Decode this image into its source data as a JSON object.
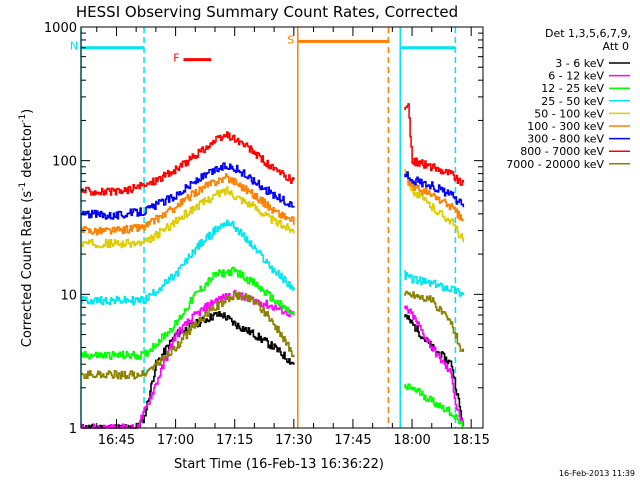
{
  "chart_data": {
    "type": "line",
    "title": "HESSI Observing Summary Count Rates, Corrected",
    "xlabel": "Start Time (16-Feb-13 16:36:22)",
    "ylabel": "Corrected Count Rate (s",
    "ylabel_units": [
      "-1",
      " detector",
      "-1",
      ")"
    ],
    "y_scale": "log",
    "ylim": [
      1,
      1000
    ],
    "xlim": [
      "16:36",
      "18:18"
    ],
    "grid": false,
    "legend_placement": "right",
    "x_ticks": [
      "16:45",
      "17:00",
      "17:15",
      "17:30",
      "17:45",
      "18:00",
      "18:15"
    ],
    "y_ticks": [
      "1",
      "10",
      "100",
      "1000"
    ],
    "legend_title": [
      "Det 1,3,5,6,7,9,",
      "Att 0"
    ],
    "footer_timestamp": "16-Feb-2013 11:39",
    "annotations": [
      {
        "label": "N",
        "color": "#00e5ee",
        "time_range": [
          "16:36",
          "16:52"
        ],
        "y": 700
      },
      {
        "label": "F",
        "color": "#ff0000",
        "time_range": [
          "17:02",
          "17:09"
        ],
        "y": 570
      },
      {
        "label": "S",
        "color": "#ff8000",
        "time_range": [
          "17:31",
          "17:54"
        ],
        "y": 780
      },
      {
        "label": "",
        "color": "#00e5ee",
        "time_range": [
          "17:57",
          "18:11"
        ],
        "y": 700
      }
    ],
    "event_markers": [
      {
        "time": "16:36",
        "color": "#00e5ee",
        "style": "solid"
      },
      {
        "time": "16:52",
        "color": "#00e5ee",
        "style": "dashed"
      },
      {
        "time": "17:31",
        "color": "#ff8000",
        "style": "solid"
      },
      {
        "time": "17:54",
        "color": "#ff8000",
        "style": "dashed"
      },
      {
        "time": "17:57",
        "color": "#00e5ee",
        "style": "solid"
      },
      {
        "time": "18:11",
        "color": "#00e5ee",
        "style": "dashed"
      }
    ],
    "series": [
      {
        "name": "3 - 6 keV",
        "color": "#000000",
        "segments": [
          {
            "t": [
              "16:36",
              "16:46",
              "16:50",
              "16:52",
              "16:55",
              "17:00",
              "17:05",
              "17:10",
              "17:12",
              "17:15",
              "17:20",
              "17:25",
              "17:30"
            ],
            "v": [
              1,
              1,
              1,
              1.2,
              3,
              5,
              6,
              7,
              7,
              6,
              5,
              4,
              3
            ]
          },
          {
            "t": [
              "17:58",
              "18:00",
              "18:05",
              "18:10",
              "18:13"
            ],
            "v": [
              7,
              6,
              4,
              3,
              1
            ]
          }
        ]
      },
      {
        "name": "6 - 12 keV",
        "color": "#ff00ff",
        "segments": [
          {
            "t": [
              "16:36",
              "16:50",
              "16:52",
              "17:00",
              "17:05",
              "17:10",
              "17:15",
              "17:20",
              "17:25",
              "17:30"
            ],
            "v": [
              1,
              1,
              1.3,
              5,
              7,
              9,
              10,
              9,
              8,
              7
            ]
          },
          {
            "t": [
              "17:58",
              "18:00",
              "18:05",
              "18:10",
              "18:11",
              "18:13"
            ],
            "v": [
              8,
              7,
              4,
              2.5,
              1.5,
              1
            ]
          }
        ]
      },
      {
        "name": "12 - 25 keV",
        "color": "#00ff00",
        "segments": [
          {
            "t": [
              "16:36",
              "16:45",
              "16:52",
              "17:00",
              "17:05",
              "17:10",
              "17:15",
              "17:20",
              "17:25",
              "17:30"
            ],
            "v": [
              3.5,
              3.5,
              3.5,
              6,
              10,
              14,
              15,
              12,
              9,
              7
            ]
          },
          {
            "t": [
              "17:58",
              "18:00",
              "18:05",
              "18:10",
              "18:13"
            ],
            "v": [
              2,
              2,
              1.6,
              1.3,
              1
            ]
          }
        ]
      },
      {
        "name": "25 - 50 keV",
        "color": "#00e5ee",
        "segments": [
          {
            "t": [
              "16:36",
              "16:45",
              "16:52",
              "17:00",
              "17:05",
              "17:10",
              "17:13",
              "17:15",
              "17:20",
              "17:25",
              "17:30"
            ],
            "v": [
              9,
              9,
              9,
              14,
              22,
              30,
              35,
              32,
              22,
              15,
              11
            ]
          },
          {
            "t": [
              "17:58",
              "18:00",
              "18:05",
              "18:10",
              "18:13"
            ],
            "v": [
              14,
              13,
              12,
              11,
              10
            ]
          }
        ]
      },
      {
        "name": "50 - 100 keV",
        "color": "#ddcc00",
        "segments": [
          {
            "t": [
              "16:36",
              "16:45",
              "16:52",
              "17:00",
              "17:05",
              "17:10",
              "17:13",
              "17:15",
              "17:20",
              "17:25",
              "17:30"
            ],
            "v": [
              24,
              24,
              24,
              35,
              45,
              55,
              60,
              55,
              45,
              35,
              30
            ]
          },
          {
            "t": [
              "17:58",
              "18:00",
              "18:05",
              "18:10",
              "18:13"
            ],
            "v": [
              90,
              60,
              45,
              35,
              25
            ]
          }
        ]
      },
      {
        "name": "100 - 300 keV",
        "color": "#ff8000",
        "segments": [
          {
            "t": [
              "16:36",
              "16:45",
              "16:52",
              "17:00",
              "17:05",
              "17:10",
              "17:13",
              "17:15",
              "17:20",
              "17:25",
              "17:30"
            ],
            "v": [
              30,
              30,
              32,
              45,
              58,
              70,
              75,
              70,
              55,
              42,
              35
            ]
          },
          {
            "t": [
              "17:58",
              "18:00",
              "18:05",
              "18:10",
              "18:13"
            ],
            "v": [
              75,
              65,
              55,
              45,
              35
            ]
          }
        ]
      },
      {
        "name": "300 - 800 keV",
        "color": "#0000ff",
        "segments": [
          {
            "t": [
              "16:36",
              "16:45",
              "16:52",
              "17:00",
              "17:05",
              "17:10",
              "17:13",
              "17:15",
              "17:20",
              "17:25",
              "17:30"
            ],
            "v": [
              40,
              39,
              42,
              55,
              70,
              85,
              92,
              88,
              70,
              55,
              45
            ]
          },
          {
            "t": [
              "17:58",
              "18:00",
              "18:05",
              "18:10",
              "18:13"
            ],
            "v": [
              80,
              72,
              65,
              55,
              45
            ]
          }
        ]
      },
      {
        "name": "800 - 7000 keV",
        "color": "#ff0000",
        "segments": [
          {
            "t": [
              "16:36",
              "16:45",
              "16:52",
              "17:00",
              "17:05",
              "17:10",
              "17:13",
              "17:15",
              "17:20",
              "17:25",
              "17:30"
            ],
            "v": [
              60,
              58,
              65,
              85,
              110,
              140,
              155,
              145,
              115,
              85,
              70
            ]
          },
          {
            "t": [
              "17:58",
              "17:59",
              "18:00",
              "18:05",
              "18:10",
              "18:13"
            ],
            "v": [
              250,
              250,
              100,
              90,
              80,
              65
            ]
          }
        ]
      },
      {
        "name": "7000 - 20000 keV",
        "color": "#8b8000",
        "segments": [
          {
            "t": [
              "16:36",
              "16:45",
              "16:52",
              "17:00",
              "17:05",
              "17:10",
              "17:15",
              "17:20",
              "17:25",
              "17:30"
            ],
            "v": [
              2.5,
              2.5,
              2.5,
              4,
              6,
              8,
              10,
              9,
              6,
              3.5
            ]
          },
          {
            "t": [
              "17:58",
              "18:00",
              "18:05",
              "18:10",
              "18:13"
            ],
            "v": [
              10,
              10,
              9,
              6,
              3.5
            ]
          }
        ]
      }
    ]
  }
}
